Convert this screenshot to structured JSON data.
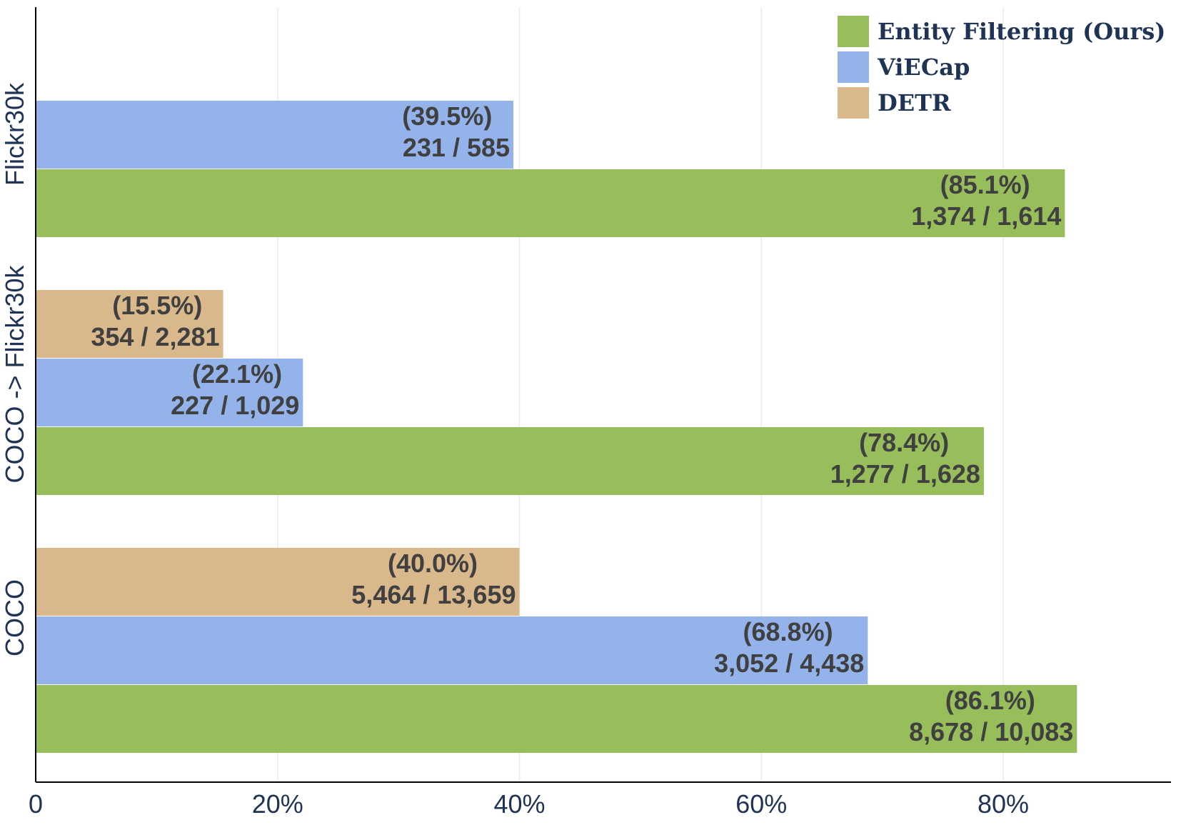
{
  "chart_data": {
    "type": "bar",
    "orientation": "horizontal",
    "title": "",
    "xlabel": "",
    "ylabel": "",
    "xlim": [
      0,
      90
    ],
    "x_ticks": [
      0,
      20,
      40,
      60,
      80
    ],
    "x_tick_labels": [
      "0",
      "20%",
      "40%",
      "60%",
      "80%"
    ],
    "grid": "vertical",
    "legend_position": "top-right",
    "categories": [
      "Flickr30k",
      "COCO -> Flickr30k",
      "COCO"
    ],
    "series": [
      {
        "name": "Entity Filtering (Ours)",
        "color": "#97be5a",
        "values": [
          85.1,
          78.4,
          86.1
        ],
        "pct_labels": [
          "(85.1%)",
          "(78.4%)",
          "(86.1%)"
        ],
        "count_labels": [
          "1,374 / 1,614",
          "1,277 / 1,628",
          "8,678 / 10,083"
        ]
      },
      {
        "name": "ViECap",
        "color": "#93b3ea",
        "values": [
          39.5,
          22.1,
          68.8
        ],
        "pct_labels": [
          "(39.5%)",
          "(22.1%)",
          "(68.8%)"
        ],
        "count_labels": [
          "231 / 585",
          "227 / 1,029",
          "3,052 / 4,438"
        ]
      },
      {
        "name": "DETR",
        "color": "#d9b88c",
        "values": [
          null,
          15.5,
          40.0
        ],
        "pct_labels": [
          null,
          "(15.5%)",
          "(40.0%)"
        ],
        "count_labels": [
          null,
          "354 / 2,281",
          "5,464 / 13,659"
        ]
      }
    ]
  }
}
